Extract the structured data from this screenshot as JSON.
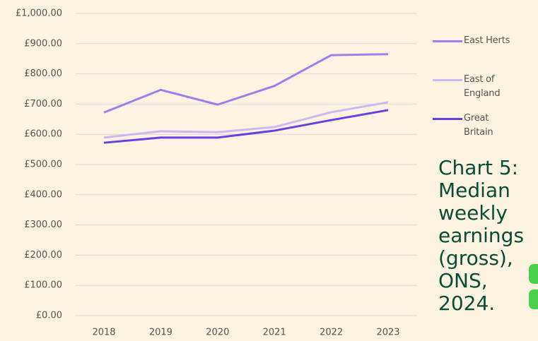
{
  "chart_data": {
    "type": "line",
    "title": "Chart 5: Median weekly earnings (gross), ONS, 2024.",
    "categories": [
      "2018",
      "2019",
      "2020",
      "2021",
      "2022",
      "2023"
    ],
    "series": [
      {
        "name": "East Herts",
        "color": "#9b80ee",
        "values": [
          672,
          747,
          698,
          760,
          862,
          865
        ]
      },
      {
        "name": "East of England",
        "color": "#c9baf5",
        "values": [
          589,
          610,
          607,
          624,
          673,
          706
        ]
      },
      {
        "name": "Great Britain",
        "color": "#6a40e0",
        "values": [
          572,
          589,
          589,
          612,
          647,
          680
        ]
      }
    ],
    "ylim": [
      0,
      1000
    ],
    "yticks": [
      {
        "value": 0,
        "label": "£0.00"
      },
      {
        "value": 100,
        "label": "£100.00"
      },
      {
        "value": 200,
        "label": "£200.00"
      },
      {
        "value": 300,
        "label": "£300.00"
      },
      {
        "value": 400,
        "label": "£400.00"
      },
      {
        "value": 500,
        "label": "£500.00"
      },
      {
        "value": 600,
        "label": "£600.00"
      },
      {
        "value": 700,
        "label": "£700.00"
      },
      {
        "value": 800,
        "label": "£800.00"
      },
      {
        "value": 900,
        "label": "£900.00"
      },
      {
        "value": 1000,
        "label": "£1,000.00"
      }
    ],
    "grid": true,
    "legend": "right"
  }
}
